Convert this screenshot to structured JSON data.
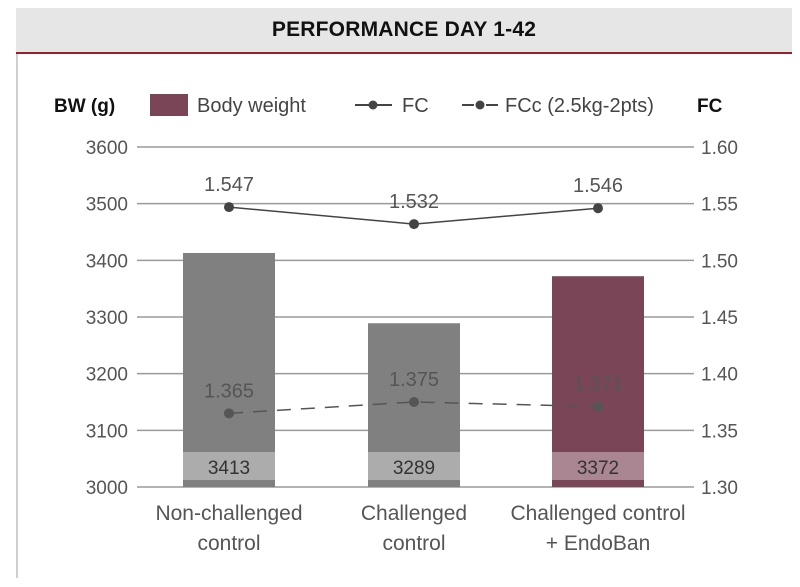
{
  "header": {
    "title": "PERFORMANCE DAY 1-42"
  },
  "chart_data": {
    "type": "bar",
    "left_axis_label": "BW (g)",
    "right_axis_label": "FC",
    "legend": [
      "Body weight",
      "FC",
      "FCc (2.5kg-2pts)"
    ],
    "categories": [
      [
        "Non-challenged",
        "control"
      ],
      [
        "Challenged",
        "control"
      ],
      [
        "Challenged control",
        "+ EndoBan"
      ]
    ],
    "left_ticks": [
      "3600",
      "3500",
      "3400",
      "3300",
      "3200",
      "3100",
      "3000"
    ],
    "right_ticks": [
      "1.60",
      "1.55",
      "1.50",
      "1.45",
      "1.40",
      "1.35",
      "1.30"
    ],
    "ylim_left": [
      3000,
      3600
    ],
    "ylim_right": [
      1.3,
      1.6
    ],
    "grid": true,
    "legend_position": "top",
    "series": [
      {
        "name": "Body weight",
        "axis": "left",
        "values": [
          3413,
          3289,
          3372
        ],
        "labels": [
          "3413",
          "3289",
          "3372"
        ]
      },
      {
        "name": "FC",
        "axis": "right",
        "values": [
          1.547,
          1.532,
          1.546
        ],
        "labels": [
          "1.547",
          "1.532",
          "1.546"
        ]
      },
      {
        "name": "FCc (2.5kg-2pts)",
        "axis": "right",
        "values": [
          1.365,
          1.375,
          1.371
        ],
        "labels": [
          "1.365",
          "1.375",
          "1.371"
        ]
      }
    ],
    "colors": {
      "bar_default": "#808080",
      "bar_highlight": "#7b4558",
      "fc_line": "#444444",
      "grid": "#9a9a9a"
    }
  }
}
